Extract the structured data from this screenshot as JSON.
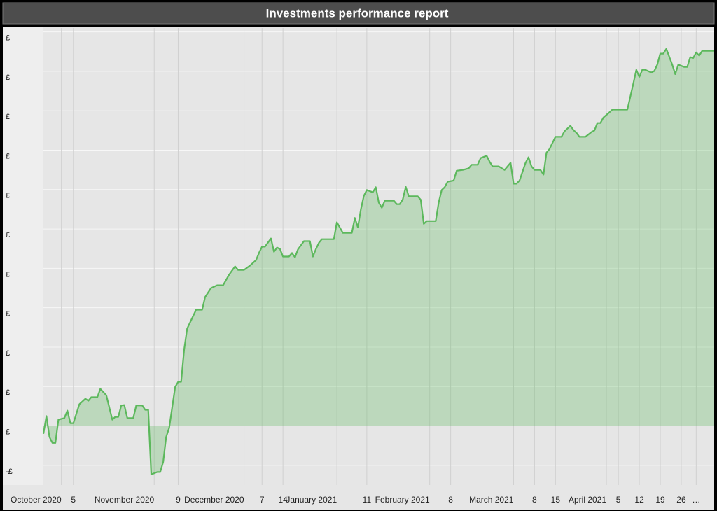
{
  "chart_data": {
    "type": "area",
    "title": "Investments performance report",
    "x": [
      "2020-09-25",
      "2020-09-26",
      "2020-09-27",
      "2020-09-28",
      "2020-09-29",
      "2020-09-30",
      "2020-10-02",
      "2020-10-03",
      "2020-10-04",
      "2020-10-05",
      "2020-10-07",
      "2020-10-08",
      "2020-10-09",
      "2020-10-10",
      "2020-10-11",
      "2020-10-13",
      "2020-10-14",
      "2020-10-16",
      "2020-10-18",
      "2020-10-19",
      "2020-10-20",
      "2020-10-21",
      "2020-10-22",
      "2020-10-23",
      "2020-10-25",
      "2020-10-26",
      "2020-10-28",
      "2020-10-29",
      "2020-10-30",
      "2020-10-31",
      "2020-11-02",
      "2020-11-03",
      "2020-11-04",
      "2020-11-05",
      "2020-11-06",
      "2020-11-08",
      "2020-11-09",
      "2020-11-10",
      "2020-11-11",
      "2020-11-12",
      "2020-11-14",
      "2020-11-15",
      "2020-11-17",
      "2020-11-18",
      "2020-11-20",
      "2020-11-22",
      "2020-11-24",
      "2020-11-26",
      "2020-11-28",
      "2020-11-29",
      "2020-12-01",
      "2020-12-03",
      "2020-12-05",
      "2020-12-06",
      "2020-12-07",
      "2020-12-08",
      "2020-12-10",
      "2020-12-11",
      "2020-12-12",
      "2020-12-13",
      "2020-12-14",
      "2020-12-16",
      "2020-12-17",
      "2020-12-18",
      "2020-12-19",
      "2020-12-21",
      "2020-12-23",
      "2020-12-24",
      "2020-12-25",
      "2020-12-26",
      "2020-12-27",
      "2020-12-31",
      "2021-01-01",
      "2021-01-03",
      "2021-01-06",
      "2021-01-07",
      "2021-01-08",
      "2021-01-09",
      "2021-01-10",
      "2021-01-11",
      "2021-01-13",
      "2021-01-14",
      "2021-01-15",
      "2021-01-16",
      "2021-01-17",
      "2021-01-20",
      "2021-01-21",
      "2021-01-22",
      "2021-01-23",
      "2021-01-24",
      "2021-01-25",
      "2021-01-28",
      "2021-01-29",
      "2021-01-30",
      "2021-01-31",
      "2021-02-03",
      "2021-02-04",
      "2021-02-05",
      "2021-02-06",
      "2021-02-07",
      "2021-02-09",
      "2021-02-10",
      "2021-02-12",
      "2021-02-14",
      "2021-02-15",
      "2021-02-17",
      "2021-02-18",
      "2021-02-20",
      "2021-02-21",
      "2021-02-22",
      "2021-02-24",
      "2021-02-26",
      "2021-02-28",
      "2021-03-01",
      "2021-03-02",
      "2021-03-03",
      "2021-03-05",
      "2021-03-06",
      "2021-03-07",
      "2021-03-08",
      "2021-03-10",
      "2021-03-11",
      "2021-03-12",
      "2021-03-13",
      "2021-03-15",
      "2021-03-17",
      "2021-03-18",
      "2021-03-20",
      "2021-03-21",
      "2021-03-22",
      "2021-03-23",
      "2021-03-25",
      "2021-03-27",
      "2021-03-28",
      "2021-03-29",
      "2021-03-30",
      "2021-03-31",
      "2021-04-02",
      "2021-04-03",
      "2021-04-08",
      "2021-04-10",
      "2021-04-11",
      "2021-04-12",
      "2021-04-13",
      "2021-04-14",
      "2021-04-16",
      "2021-04-17",
      "2021-04-18",
      "2021-04-19",
      "2021-04-20",
      "2021-04-21",
      "2021-04-23",
      "2021-04-24",
      "2021-04-25",
      "2021-04-27",
      "2021-04-28",
      "2021-04-29",
      "2021-04-30",
      "2021-05-01",
      "2021-05-02",
      "2021-05-03",
      "2021-05-07"
    ],
    "series": [
      {
        "color": "#5cb85c",
        "values": [
          -0.2,
          0.25,
          -0.28,
          -0.43,
          -0.43,
          0.16,
          0.2,
          0.39,
          0.07,
          0.07,
          0.55,
          0.62,
          0.69,
          0.64,
          0.73,
          0.73,
          0.94,
          0.78,
          0.16,
          0.23,
          0.23,
          0.52,
          0.53,
          0.2,
          0.2,
          0.52,
          0.52,
          0.41,
          0.41,
          -1.23,
          -1.17,
          -1.17,
          -0.91,
          -0.28,
          -0.05,
          0.99,
          1.12,
          1.12,
          1.94,
          2.47,
          2.79,
          2.95,
          2.95,
          3.27,
          3.5,
          3.57,
          3.57,
          3.84,
          4.05,
          3.96,
          3.96,
          4.07,
          4.21,
          4.39,
          4.55,
          4.55,
          4.76,
          4.42,
          4.53,
          4.49,
          4.3,
          4.3,
          4.39,
          4.28,
          4.48,
          4.69,
          4.69,
          4.3,
          4.49,
          4.65,
          4.74,
          4.74,
          5.17,
          4.9,
          4.9,
          5.28,
          5.04,
          5.49,
          5.84,
          5.99,
          5.93,
          6.06,
          5.67,
          5.54,
          5.72,
          5.72,
          5.63,
          5.63,
          5.75,
          6.07,
          5.83,
          5.83,
          5.74,
          5.13,
          5.2,
          5.2,
          5.67,
          5.99,
          6.06,
          6.2,
          6.23,
          6.48,
          6.5,
          6.54,
          6.63,
          6.63,
          6.8,
          6.86,
          6.71,
          6.59,
          6.59,
          6.5,
          6.68,
          6.15,
          6.15,
          6.23,
          6.68,
          6.82,
          6.59,
          6.5,
          6.5,
          6.38,
          6.94,
          7.03,
          7.34,
          7.34,
          7.48,
          7.62,
          7.51,
          7.44,
          7.34,
          7.34,
          7.46,
          7.5,
          7.69,
          7.69,
          7.83,
          7.96,
          8.03,
          8.03,
          8.69,
          9.04,
          8.86,
          9.04,
          9.04,
          8.97,
          9.01,
          9.17,
          9.45,
          9.45,
          9.57,
          9.17,
          8.93,
          9.17,
          9.11,
          9.11,
          9.36,
          9.34,
          9.48,
          9.4,
          9.52,
          9.52
        ]
      }
    ],
    "xlim": [
      "2020-09-25",
      "2021-05-07"
    ],
    "xticks": [
      {
        "value": "2020-10-01",
        "label": "October 2020"
      },
      {
        "value": "2020-10-05",
        "label": "5"
      },
      {
        "value": "2020-11-01",
        "label": "November 2020"
      },
      {
        "value": "2020-11-09",
        "label": "9"
      },
      {
        "value": "2020-12-01",
        "label": "December 2020"
      },
      {
        "value": "2020-12-07",
        "label": "7"
      },
      {
        "value": "2020-12-14",
        "label": "14"
      },
      {
        "value": "2021-01-01",
        "label": "January 2021"
      },
      {
        "value": "2021-01-11",
        "label": "11"
      },
      {
        "value": "2021-02-01",
        "label": "February 2021"
      },
      {
        "value": "2021-02-08",
        "label": "8"
      },
      {
        "value": "2021-03-01",
        "label": "March 2021"
      },
      {
        "value": "2021-03-08",
        "label": "8"
      },
      {
        "value": "2021-03-15",
        "label": "15"
      },
      {
        "value": "2021-04-01",
        "label": "April 2021"
      },
      {
        "value": "2021-04-05",
        "label": "5"
      },
      {
        "value": "2021-04-12",
        "label": "12"
      },
      {
        "value": "2021-04-19",
        "label": "19"
      },
      {
        "value": "2021-04-26",
        "label": "26"
      },
      {
        "value": "2021-05-01",
        "label": "…"
      }
    ],
    "ylim": [
      -1.5,
      10.1
    ],
    "yticks": [
      {
        "value": -1,
        "label": "-£"
      },
      {
        "value": 0,
        "label": "£"
      },
      {
        "value": 1,
        "label": "£"
      },
      {
        "value": 2,
        "label": "£"
      },
      {
        "value": 3,
        "label": "£"
      },
      {
        "value": 4,
        "label": "£"
      },
      {
        "value": 5,
        "label": "£"
      },
      {
        "value": 6,
        "label": "£"
      },
      {
        "value": 7,
        "label": "£"
      },
      {
        "value": 8,
        "label": "£"
      },
      {
        "value": 9,
        "label": "£"
      },
      {
        "value": 10,
        "label": "£"
      }
    ],
    "grid": true
  }
}
